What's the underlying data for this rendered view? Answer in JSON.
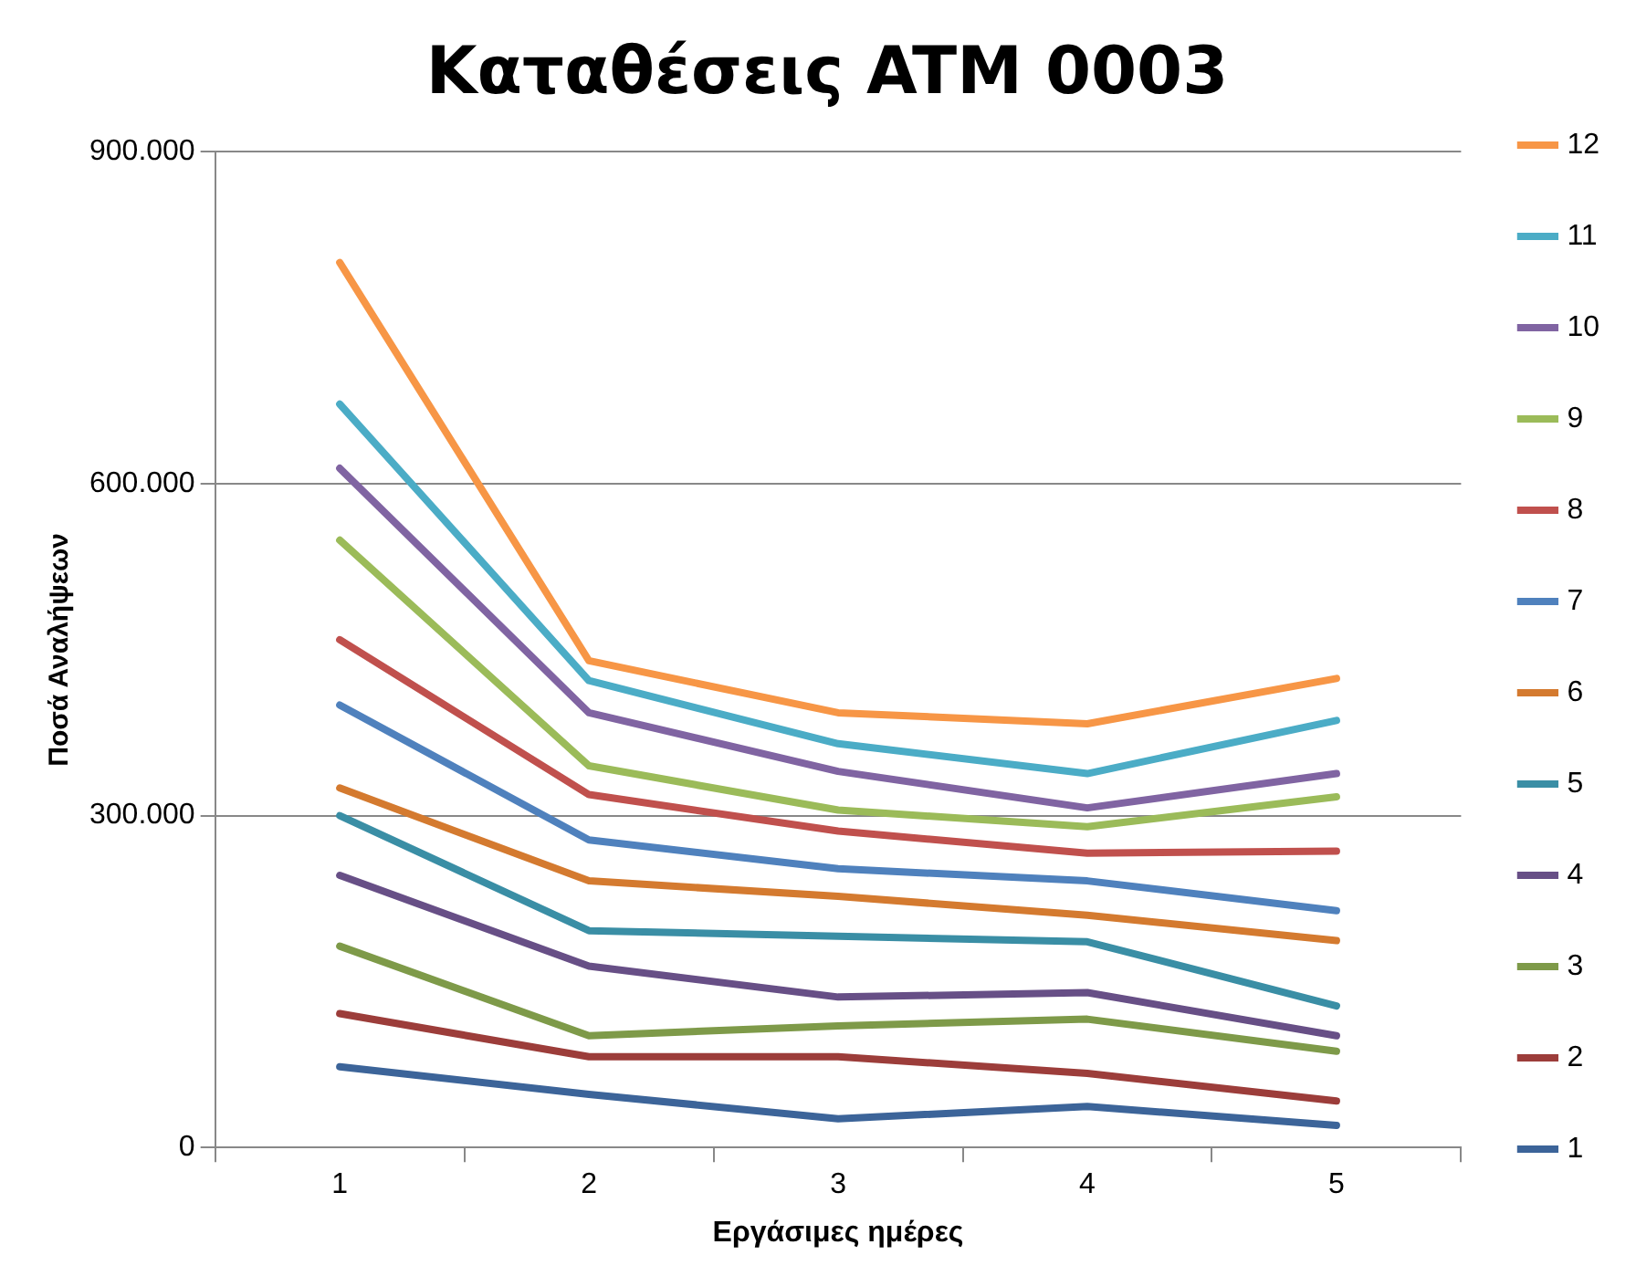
{
  "chart_data": {
    "type": "line",
    "title": "Καταθέσεις ATM 0003",
    "xlabel": "Εργάσιμες ημέρες",
    "ylabel": "Ποσά Αναλήψεων",
    "categories": [
      "1",
      "2",
      "3",
      "4",
      "5"
    ],
    "ylim": [
      0,
      900000
    ],
    "yticks": [
      0,
      {
        "value": 300000,
        "label": "300.000"
      },
      {
        "value": 600000,
        "label": "600.000"
      },
      {
        "value": 900000,
        "label": "900.000"
      }
    ],
    "grid": "y",
    "legend": "right",
    "marker": "none",
    "line_style": "solid",
    "series": [
      {
        "name": "1",
        "color": "#3c6499",
        "values": [
          73000,
          48000,
          26000,
          37000,
          20000
        ]
      },
      {
        "name": "2",
        "color": "#9c3d3a",
        "values": [
          121000,
          82000,
          82000,
          67000,
          42000
        ]
      },
      {
        "name": "3",
        "color": "#7e9a49",
        "values": [
          182000,
          101000,
          110000,
          116000,
          87000
        ]
      },
      {
        "name": "4",
        "color": "#674f86",
        "values": [
          246000,
          164000,
          136000,
          140000,
          101000
        ]
      },
      {
        "name": "5",
        "color": "#3a8ea5",
        "values": [
          300000,
          196000,
          191000,
          186000,
          128000
        ]
      },
      {
        "name": "6",
        "color": "#d47a2f",
        "values": [
          325000,
          241000,
          227000,
          210000,
          187000
        ]
      },
      {
        "name": "7",
        "color": "#4f81bd",
        "values": [
          400000,
          278000,
          252000,
          241000,
          214000
        ]
      },
      {
        "name": "8",
        "color": "#c0504d",
        "values": [
          459000,
          319000,
          286000,
          266000,
          268000
        ]
      },
      {
        "name": "9",
        "color": "#9bbb59",
        "values": [
          549000,
          345000,
          305000,
          290000,
          317000
        ]
      },
      {
        "name": "10",
        "color": "#8064a2",
        "values": [
          614000,
          393000,
          340000,
          307000,
          338000
        ]
      },
      {
        "name": "11",
        "color": "#4bacc6",
        "values": [
          672000,
          422000,
          365000,
          338000,
          386000
        ]
      },
      {
        "name": "12",
        "color": "#f79646",
        "values": [
          800000,
          440000,
          393000,
          383000,
          424000
        ]
      }
    ]
  }
}
